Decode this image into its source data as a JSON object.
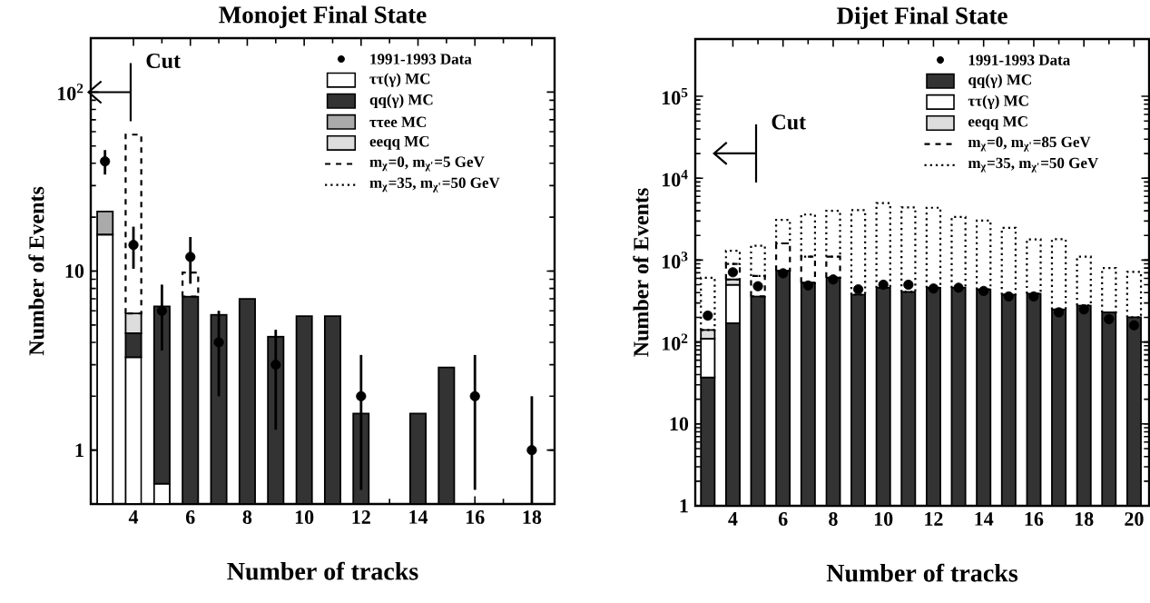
{
  "chart_data": [
    {
      "type": "bar",
      "title": "Monojet Final State",
      "xlabel": "Number of tracks",
      "ylabel": "Number of Events",
      "log": "y",
      "stacked": true,
      "legend": "top right",
      "marker": "circle",
      "xlim": [
        2.5,
        18.8
      ],
      "ylim": [
        0.5,
        200
      ],
      "xticks": [
        4,
        6,
        8,
        10,
        12,
        14,
        16,
        18
      ],
      "yticks": [
        1,
        10,
        {
          "value": 100,
          "label": "10$^{2}$"
        }
      ],
      "x": [
        3,
        4,
        5,
        6,
        7,
        8,
        9,
        10,
        11,
        12,
        13,
        14,
        15,
        16,
        17,
        18
      ],
      "annotations": [
        "Cut"
      ],
      "series": [
        {
          "name": "1991-1993 Data",
          "type": "scatter",
          "color": "#000000",
          "values": [
            41,
            14,
            6,
            12,
            4,
            null,
            3,
            null,
            null,
            2,
            null,
            null,
            null,
            2,
            null,
            1
          ],
          "errors": [
            6.4,
            3.7,
            2.4,
            3.5,
            2,
            null,
            1.7,
            null,
            null,
            1.4,
            null,
            null,
            null,
            1.4,
            null,
            [
              0.5,
              2
            ]
          ]
        },
        {
          "name": "ττ(γ) MC",
          "color": "#ffffff",
          "values": [
            16,
            3.3,
            0.65,
            null,
            null,
            null,
            null,
            null,
            null,
            null,
            null,
            null,
            null,
            null,
            null,
            null
          ]
        },
        {
          "name": "qq(γ) MC",
          "color": "#333333",
          "values": [
            null,
            1.2,
            5.7,
            7.2,
            5.7,
            7.0,
            4.3,
            5.6,
            5.6,
            1.6,
            null,
            1.6,
            2.9,
            null,
            null,
            null
          ]
        },
        {
          "name": "ττee MC",
          "color": "#aaaaaa",
          "values": [
            5.5,
            null,
            null,
            null,
            null,
            null,
            null,
            null,
            null,
            null,
            null,
            null,
            null,
            null,
            null,
            null
          ]
        },
        {
          "name": "eeqq MC",
          "color": "#dddddd",
          "values": [
            null,
            1.3,
            null,
            null,
            null,
            null,
            null,
            null,
            null,
            null,
            null,
            null,
            null,
            null,
            null,
            null
          ]
        },
        {
          "name": "m$_{χ}$=0, m$_{χ'}$=5 GeV",
          "line_style": "dashed",
          "color": "#000000",
          "values": [
            null,
            52,
            null,
            2.6,
            null,
            null,
            null,
            null,
            null,
            null,
            null,
            null,
            null,
            null,
            null,
            null
          ]
        },
        {
          "name": "m$_{χ}$=35, m$_{χ'}$=50 GeV",
          "line_style": "dotted",
          "color": "#000000",
          "values": [
            null,
            null,
            null,
            null,
            null,
            null,
            null,
            null,
            null,
            null,
            null,
            null,
            null,
            null,
            null,
            null
          ]
        }
      ]
    },
    {
      "type": "bar",
      "title": "Dijet Final State",
      "xlabel": "Number of tracks",
      "ylabel": "Number of Events",
      "log": "y",
      "stacked": true,
      "legend": "top right",
      "marker": "circle",
      "xlim": [
        2.5,
        20.6
      ],
      "ylim": [
        1,
        500000
      ],
      "xticks": [
        4,
        6,
        8,
        10,
        12,
        14,
        16,
        18,
        20
      ],
      "yticks": [
        1,
        10,
        {
          "value": 100,
          "label": "10$^{2}$"
        },
        {
          "value": 1000,
          "label": "10$^{3}$"
        },
        {
          "value": 10000,
          "label": "10$^{4}$"
        },
        {
          "value": 100000,
          "label": "10$^{5}$"
        }
      ],
      "x": [
        3,
        4,
        5,
        6,
        7,
        8,
        9,
        10,
        11,
        12,
        13,
        14,
        15,
        16,
        17,
        18,
        19,
        20
      ],
      "annotations": [
        "Cut"
      ],
      "series": [
        {
          "name": "1991-1993 Data",
          "type": "scatter",
          "color": "#000000",
          "values": [
            210,
            710,
            480,
            690,
            490,
            580,
            440,
            500,
            500,
            450,
            460,
            420,
            360,
            360,
            230,
            250,
            190,
            160
          ]
        },
        {
          "name": "qq(γ) MC",
          "color": "#333333",
          "values": [
            37,
            170,
            360,
            740,
            530,
            610,
            380,
            460,
            410,
            460,
            460,
            440,
            380,
            390,
            250,
            280,
            230,
            200
          ]
        },
        {
          "name": "ττ(γ) MC",
          "color": "#ffffff",
          "values": [
            73,
            330,
            null,
            null,
            null,
            null,
            null,
            null,
            null,
            null,
            null,
            null,
            null,
            null,
            null,
            null,
            null,
            null
          ]
        },
        {
          "name": "eeqq MC",
          "color": "#dddddd",
          "values": [
            30,
            80,
            null,
            null,
            null,
            null,
            null,
            null,
            null,
            null,
            null,
            null,
            null,
            null,
            null,
            null,
            null,
            null
          ]
        },
        {
          "name": "m$_{χ}$=0, m$_{χ'}$=85 GeV",
          "line_style": "dashed",
          "color": "#000000",
          "values": [
            null,
            320,
            280,
            860,
            570,
            490,
            null,
            null,
            null,
            null,
            null,
            null,
            null,
            null,
            null,
            null,
            null,
            null
          ]
        },
        {
          "name": "m$_{χ}$=35, m$_{χ'}$=50 GeV",
          "line_style": "dotted",
          "color": "#000000",
          "values": [
            470,
            400,
            860,
            1500,
            2500,
            2900,
            3700,
            4500,
            4000,
            3900,
            2900,
            2600,
            2100,
            1400,
            1550,
            820,
            570,
            520
          ]
        }
      ]
    }
  ]
}
